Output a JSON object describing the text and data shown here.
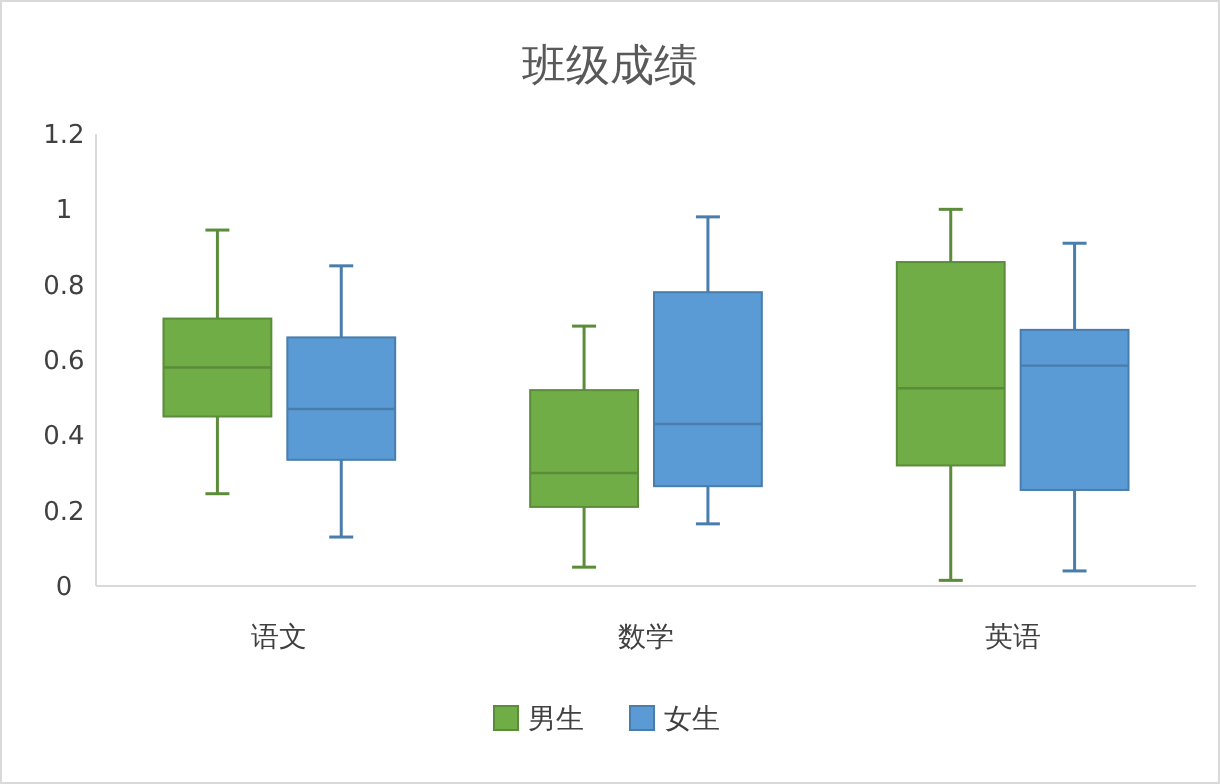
{
  "chart_data": {
    "type": "box",
    "title": "班级成绩",
    "categories": [
      "语文",
      "数学",
      "英语"
    ],
    "ylim": [
      0,
      1.2
    ],
    "yticks": [
      0,
      0.2,
      0.4,
      0.6,
      0.8,
      1,
      1.2
    ],
    "grid": false,
    "legend": "bottom",
    "series": [
      {
        "name": "男生",
        "color": "#70ad47",
        "boxes": [
          {
            "low": 0.245,
            "q1": 0.45,
            "median": 0.58,
            "q3": 0.71,
            "high": 0.945
          },
          {
            "low": 0.05,
            "q1": 0.21,
            "median": 0.3,
            "q3": 0.52,
            "high": 0.69
          },
          {
            "low": 0.015,
            "q1": 0.32,
            "median": 0.525,
            "q3": 0.86,
            "high": 1.0
          }
        ]
      },
      {
        "name": "女生",
        "color": "#5b9bd5",
        "boxes": [
          {
            "low": 0.13,
            "q1": 0.335,
            "median": 0.47,
            "q3": 0.66,
            "high": 0.85
          },
          {
            "low": 0.165,
            "q1": 0.265,
            "median": 0.43,
            "q3": 0.78,
            "high": 0.98
          },
          {
            "low": 0.04,
            "q1": 0.255,
            "median": 0.585,
            "q3": 0.68,
            "high": 0.91
          }
        ]
      }
    ]
  }
}
